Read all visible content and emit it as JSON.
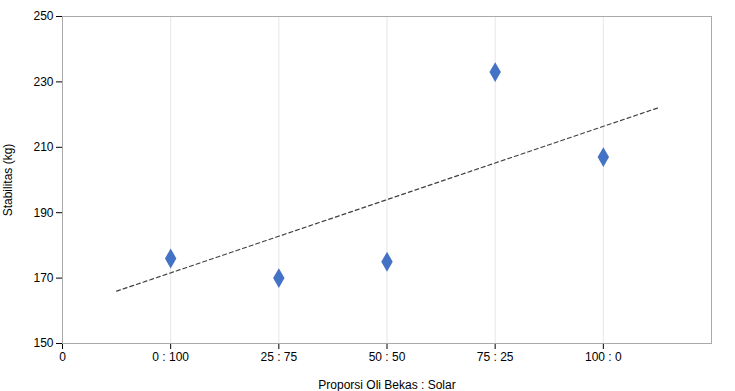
{
  "chart_data": {
    "type": "scatter",
    "x": [
      1,
      2,
      3,
      4,
      5
    ],
    "values": [
      176,
      170,
      175,
      233,
      207
    ],
    "color": "#4472C4",
    "marker": "diamond",
    "xlabel": "Proporsi Oli Bekas : Solar",
    "ylabel": "Stabilitas (kg)",
    "xlim": [
      0,
      6
    ],
    "xticks": [
      0,
      {
        "value": 1,
        "label": "0 : 100"
      },
      {
        "value": 2,
        "label": "25 : 75"
      },
      {
        "value": 3,
        "label": "50 : 50"
      },
      {
        "value": 4,
        "label": "75 : 25"
      },
      {
        "value": 5,
        "label": "100 : 0"
      }
    ],
    "ylim": [
      150,
      250
    ],
    "yticks": [
      150,
      170,
      190,
      210,
      230,
      250
    ],
    "grid": "x",
    "trendline": {
      "x": [
        0.5,
        5.5
      ],
      "values": [
        166,
        222
      ],
      "color": "#404040",
      "line_style": "dashed"
    }
  }
}
